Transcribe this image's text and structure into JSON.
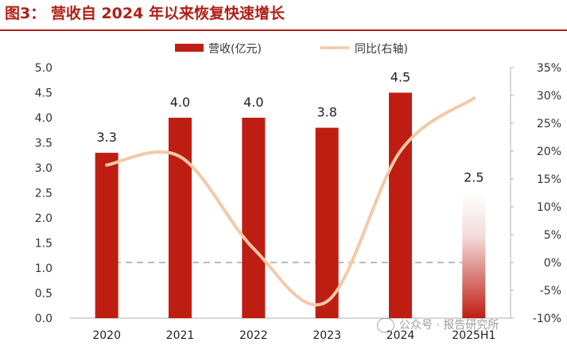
{
  "figure_title": "图3：  营收自 2024 年以来恢复快速增长",
  "watermark": "公众号 · 报告研究所",
  "colors": {
    "bar": "#be1e12",
    "line": "#f4c9a6",
    "title": "#b11f17",
    "zero": "#bbbbbb"
  },
  "chart_data": {
    "type": "bar",
    "categories": [
      "2020",
      "2021",
      "2022",
      "2023",
      "2024",
      "2025H1"
    ],
    "series": [
      {
        "name": "营收(亿元)",
        "type": "bar",
        "axis": "left",
        "values": [
          3.3,
          4.0,
          4.0,
          3.8,
          4.5,
          2.5
        ],
        "labels": [
          "3.3",
          "4.0",
          "4.0",
          "3.8",
          "4.5",
          "2.5"
        ]
      },
      {
        "name": "同比(右轴)",
        "type": "line",
        "axis": "right",
        "unit": "%",
        "values": [
          17.5,
          19.0,
          2.5,
          -7.0,
          20.0,
          29.5
        ]
      }
    ],
    "y_left": {
      "min": 0,
      "max": 5,
      "ticks": [
        "0.0",
        "0.5",
        "1.0",
        "1.5",
        "2.0",
        "2.5",
        "3.0",
        "3.5",
        "4.0",
        "4.5",
        "5.0"
      ]
    },
    "y_right": {
      "min": -10,
      "max": 35,
      "ticks": [
        "-10%",
        "-5%",
        "0%",
        "5%",
        "10%",
        "15%",
        "20%",
        "25%",
        "30%",
        "35%"
      ]
    },
    "legend_position": "top-center",
    "zero_line": "dashed gray reference at 0% on right axis",
    "last_bar_style": "gradient fade (half-year figure)"
  }
}
